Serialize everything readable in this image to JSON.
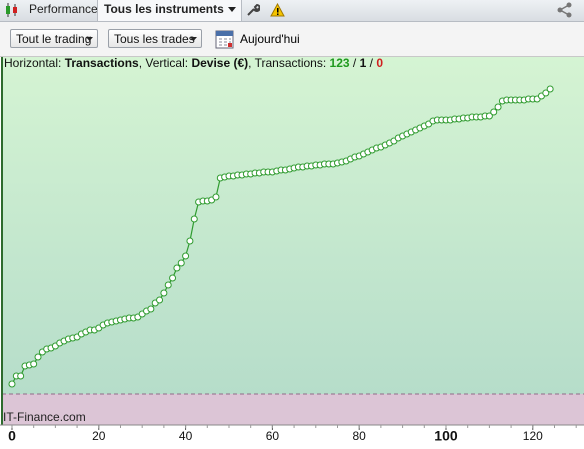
{
  "tabs": {
    "performance": "Performance",
    "instruments": "Tous les instruments"
  },
  "toolbar": {
    "trading": "Tout le trading",
    "trades": "Tous les trades",
    "date": "Aujourd'hui"
  },
  "info": {
    "horizontal_label": "Horizontal:",
    "horizontal_value": "Transactions",
    "vertical_label": ", Vertical:",
    "vertical_value": "Devise (€)",
    "count_label": ", Transactions:",
    "separator": "/",
    "counts": [
      123,
      1,
      0
    ]
  },
  "chart_data": {
    "type": "line",
    "x": [
      0,
      1,
      2,
      3,
      4,
      5,
      6,
      7,
      8,
      9,
      10,
      11,
      12,
      13,
      14,
      15,
      16,
      17,
      18,
      19,
      20,
      21,
      22,
      23,
      24,
      25,
      26,
      27,
      28,
      29,
      30,
      31,
      32,
      33,
      34,
      35,
      36,
      37,
      38,
      39,
      40,
      41,
      42,
      43,
      44,
      45,
      46,
      47,
      48,
      49,
      50,
      51,
      52,
      53,
      54,
      55,
      56,
      57,
      58,
      59,
      60,
      61,
      62,
      63,
      64,
      65,
      66,
      67,
      68,
      69,
      70,
      71,
      72,
      73,
      74,
      75,
      76,
      77,
      78,
      79,
      80,
      81,
      82,
      83,
      84,
      85,
      86,
      87,
      88,
      89,
      90,
      91,
      92,
      93,
      94,
      95,
      96,
      97,
      98,
      99,
      100,
      101,
      102,
      103,
      104,
      105,
      106,
      107,
      108,
      109,
      110,
      111,
      112,
      113,
      114,
      115,
      116,
      117,
      118,
      119,
      120,
      121,
      122,
      123,
      124
    ],
    "values": [
      10,
      18,
      18,
      28,
      29,
      30,
      37,
      42,
      45,
      46,
      48,
      51,
      53,
      55,
      56,
      57,
      60,
      62,
      64,
      64,
      66,
      69,
      71,
      72,
      73,
      74,
      75,
      76,
      76,
      77,
      80,
      83,
      85,
      91,
      94,
      101,
      109,
      116,
      126,
      131,
      138,
      153,
      175,
      192,
      193,
      193,
      194,
      197,
      216,
      217,
      218,
      218,
      219,
      219,
      220,
      220,
      221,
      221,
      222,
      222,
      222,
      223,
      224,
      224,
      225,
      226,
      227,
      227,
      228,
      228,
      229,
      229,
      230,
      230,
      230,
      231,
      232,
      233,
      235,
      237,
      238,
      240,
      242,
      244,
      246,
      247,
      249,
      251,
      253,
      256,
      258,
      260,
      262,
      264,
      266,
      268,
      270,
      273,
      274,
      274,
      274,
      274,
      275,
      275,
      276,
      276,
      277,
      277,
      277,
      278,
      278,
      282,
      287,
      293,
      294,
      294,
      294,
      294,
      294,
      295,
      295,
      295,
      298,
      301,
      305
    ],
    "color": "#2f9b2f",
    "xlim": [
      -2.3,
      131.8
    ],
    "ylim": [
      -31,
      337
    ],
    "xticks": [
      0,
      20,
      40,
      60,
      80,
      100,
      120
    ],
    "major_xticks": [
      0,
      100
    ],
    "watermark": "IT-Finance.com"
  }
}
